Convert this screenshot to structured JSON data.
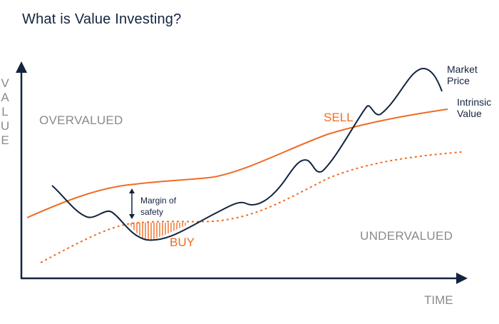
{
  "title": "What is Value Investing?",
  "axes": {
    "y_label_letters": [
      "V",
      "A",
      "L",
      "U",
      "E"
    ],
    "x_label": "TIME"
  },
  "zones": {
    "overvalued": "OVERVALUED",
    "undervalued": "UNDERVALUED"
  },
  "annotations": {
    "sell": "SELL",
    "buy": "BUY",
    "margin_line1": "Margin of",
    "margin_line2": "safety"
  },
  "legend": {
    "market_line1": "Market",
    "market_line2": "Price",
    "intrinsic_line1": "Intrinsic",
    "intrinsic_line2": "Value"
  },
  "colors": {
    "navy": "#13243f",
    "orange": "#ef6c24",
    "grey": "#8a8a8a"
  }
}
